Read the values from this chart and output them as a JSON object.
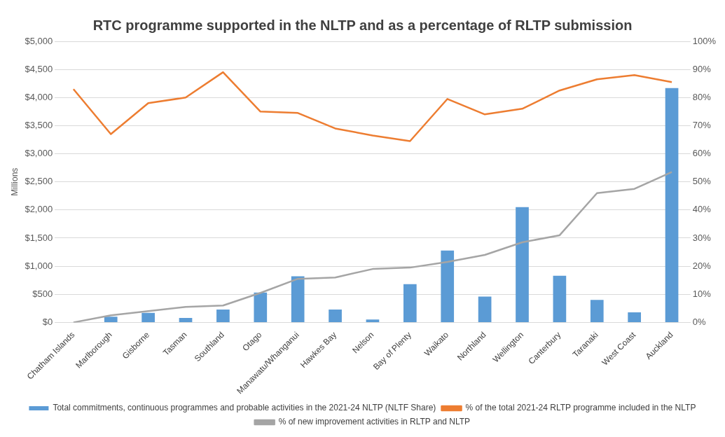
{
  "chart_data": {
    "type": "bar",
    "title": "RTC programme supported in the NLTP and as a percentage of RLTP submission",
    "ylabel": "Millions",
    "categories": [
      "Chatham Islands",
      "Marlborough",
      "Gisborne",
      "Tasman",
      "Southland",
      "Otago",
      "Manawatu/Whanganui",
      "Hawkes Bay",
      "Nelson",
      "Bay of Plenty",
      "Waikato",
      "Northland",
      "Wellington",
      "Canterbury",
      "Taranaki",
      "West Coast",
      "Auckland"
    ],
    "series": [
      {
        "name": "Total commitments, continuous programmes and probable activities in the 2021-24 NLTP (NLTF Share)",
        "color": "#5b9bd5",
        "values": [
          0,
          100,
          170,
          80,
          230,
          530,
          820,
          230,
          50,
          680,
          1280,
          460,
          2050,
          830,
          400,
          180,
          4170
        ]
      },
      {
        "name": "% of the total 2021-24 RLTP programme included in the NLTP",
        "type": "line",
        "axis": "y2",
        "color": "#ed7d31",
        "values": [
          83,
          67,
          78,
          80,
          89,
          75,
          74.5,
          69,
          66.5,
          64.5,
          79.5,
          74,
          76,
          82.5,
          86.5,
          88,
          85.5
        ]
      },
      {
        "name": "% of new improvement activities in RLTP and NLTP",
        "type": "line",
        "axis": "y2",
        "color": "#a5a5a5",
        "values": [
          0,
          2.5,
          4,
          5.5,
          6,
          10.5,
          15.5,
          16,
          19,
          19.5,
          21.5,
          24,
          28.5,
          31,
          46,
          47.5,
          53.5
        ]
      }
    ],
    "ylim": [
      0,
      5000
    ],
    "yticks": [
      {
        "value": 0,
        "label": "$0"
      },
      {
        "value": 500,
        "label": "$500"
      },
      {
        "value": 1000,
        "label": "$1,000"
      },
      {
        "value": 1500,
        "label": "$1,500"
      },
      {
        "value": 2000,
        "label": "$2,000"
      },
      {
        "value": 2500,
        "label": "$2,500"
      },
      {
        "value": 3000,
        "label": "$3,000"
      },
      {
        "value": 3500,
        "label": "$3,500"
      },
      {
        "value": 4000,
        "label": "$4,000"
      },
      {
        "value": 4500,
        "label": "$4,500"
      },
      {
        "value": 5000,
        "label": "$5,000"
      }
    ],
    "y2lim": [
      0,
      100
    ],
    "y2ticks": [
      {
        "value": 0,
        "label": "0%"
      },
      {
        "value": 10,
        "label": "10%"
      },
      {
        "value": 20,
        "label": "20%"
      },
      {
        "value": 30,
        "label": "30%"
      },
      {
        "value": 40,
        "label": "40%"
      },
      {
        "value": 50,
        "label": "50%"
      },
      {
        "value": 60,
        "label": "60%"
      },
      {
        "value": 70,
        "label": "70%"
      },
      {
        "value": 80,
        "label": "80%"
      },
      {
        "value": 90,
        "label": "90%"
      },
      {
        "value": 100,
        "label": "100%"
      }
    ],
    "grid": "y",
    "legend": "bottom",
    "marker": "none"
  }
}
